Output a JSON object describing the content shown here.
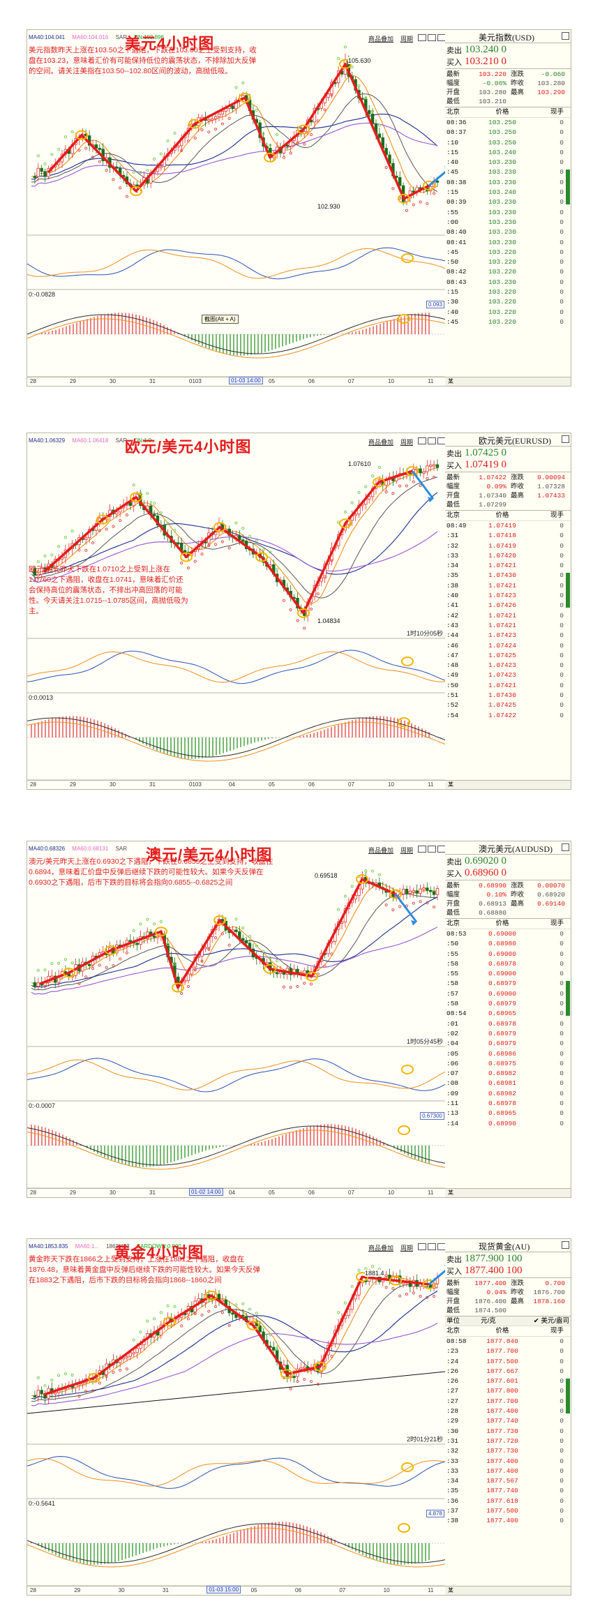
{
  "panels": [
    {
      "title": "美元4小时图",
      "ma": [
        "MA40:104.041",
        "MA60:104.016",
        "SAR",
        "DN:103.896"
      ],
      "note": "美元指数昨天上涨在103.50之下遇阻，下跌在103.00之上受到支持，收盘在103.23，意味着汇价有可能保持低位的震荡状态，不排除加大反弹的空间。请关注美指在103.50--102.80区间的波动，高抛低吸。",
      "labels": {
        "high": "105.630",
        "low": "102.930"
      },
      "osc_caption": "",
      "macd_caption": "0:-0.0828",
      "right_value": "0.093",
      "tooltip": "截图(Alt + A)",
      "x_axis": [
        "28",
        "29",
        "30",
        "31",
        "0103",
        "01-03 14:00",
        "05",
        "06",
        "07",
        "10",
        "11"
      ],
      "toolbar": [
        "商品叠加",
        "周期"
      ],
      "quote": {
        "title": "美元指数(USD)",
        "sell_label": "卖出",
        "sell": "103.240 0",
        "buy_label": "买入",
        "buy": "103.210 0",
        "stats": [
          [
            "最新",
            "103.220",
            "涨跌",
            "-0.060"
          ],
          [
            "幅度",
            "-0.06%",
            "昨收",
            "103.280"
          ],
          [
            "开盘",
            "103.280",
            "最高",
            "103.290"
          ],
          [
            "最低",
            "103.210",
            "",
            ""
          ]
        ],
        "header": [
          "北京",
          "价格",
          "现手"
        ],
        "ticks": [
          [
            "08:36",
            "103.250",
            "0"
          ],
          [
            "08:37",
            "103.250",
            "0"
          ],
          [
            ":10",
            "103.250",
            "0"
          ],
          [
            ":15",
            "103.240",
            "0"
          ],
          [
            ":40",
            "103.230",
            "0"
          ],
          [
            ":45",
            "103.230",
            "0"
          ],
          [
            "08:38",
            "103.230",
            "0"
          ],
          [
            ":15",
            "103.240",
            "0"
          ],
          [
            "08:39",
            "103.230",
            "0"
          ],
          [
            ":55",
            "103.230",
            "0"
          ],
          [
            ":00",
            "103.230",
            "0"
          ],
          [
            "08:40",
            "103.230",
            "0"
          ],
          [
            "08:41",
            "103.230",
            "0"
          ],
          [
            ":45",
            "103.220",
            "0"
          ],
          [
            ":50",
            "103.220",
            "0"
          ],
          [
            "08:42",
            "103.220",
            "0"
          ],
          [
            "08:43",
            "103.230",
            "0"
          ],
          [
            ":15",
            "103.220",
            "0"
          ],
          [
            ":30",
            "103.220",
            "0"
          ],
          [
            ":40",
            "103.220",
            "0"
          ],
          [
            ":45",
            "103.220",
            "0"
          ]
        ],
        "footer": "某"
      }
    },
    {
      "title": "欧元/美元4小时图",
      "ma": [
        "MA40:1.06329",
        "MA60:1.06418",
        "SAR",
        "DN:1.0..."
      ],
      "note": "欧元/美元昨天下跌在1.0710之上受到上涨在1.0760之下遇阻，收盘在1.0741，意味着汇价还会保持高位的震荡状态，不排出冲高回落的可能性。今天请关注1.0715--1.0785区间，高抛低吸为主。",
      "labels": {
        "high": "1.07610",
        "low": "1.04834"
      },
      "osc_caption": "1时10分05秒",
      "macd_caption": "0:0.0013",
      "right_value": "",
      "tooltip": "",
      "x_axis": [
        "28",
        "29",
        "30",
        "31",
        "0103",
        "04",
        "05",
        "06",
        "07",
        "10",
        "11"
      ],
      "toolbar": [
        "商品叠加",
        "周期"
      ],
      "quote": {
        "title": "欧元美元(EURUSD)",
        "sell_label": "卖出",
        "sell": "1.07425 0",
        "buy_label": "买入",
        "buy": "1.07419 0",
        "stats": [
          [
            "最新",
            "1.07422",
            "涨跌",
            "0.00094"
          ],
          [
            "幅度",
            "0.09%",
            "昨收",
            "1.07328"
          ],
          [
            "开盘",
            "1.07340",
            "最高",
            "1.07433"
          ],
          [
            "最低",
            "1.07299",
            "",
            ""
          ]
        ],
        "header": [
          "北京",
          "价格",
          "现手"
        ],
        "ticks": [
          [
            "08:49",
            "1.07419",
            "0"
          ],
          [
            ":31",
            "1.07418",
            "0"
          ],
          [
            ":32",
            "1.07419",
            "0"
          ],
          [
            ":33",
            "1.07420",
            "0"
          ],
          [
            ":34",
            "1.07421",
            "0"
          ],
          [
            ":35",
            "1.07430",
            "0"
          ],
          [
            ":38",
            "1.07421",
            "0"
          ],
          [
            ":40",
            "1.07423",
            "0"
          ],
          [
            ":41",
            "1.07426",
            "0"
          ],
          [
            ":42",
            "1.07421",
            "0"
          ],
          [
            ":43",
            "1.07421",
            "0"
          ],
          [
            ":44",
            "1.07423",
            "0"
          ],
          [
            ":46",
            "1.07424",
            "0"
          ],
          [
            ":47",
            "1.07425",
            "0"
          ],
          [
            ":48",
            "1.07423",
            "0"
          ],
          [
            ":49",
            "1.07423",
            "0"
          ],
          [
            ":50",
            "1.07421",
            "0"
          ],
          [
            ":51",
            "1.07430",
            "0"
          ],
          [
            ":52",
            "1.07425",
            "0"
          ],
          [
            ":54",
            "1.07422",
            "0"
          ]
        ],
        "footer": "某"
      }
    },
    {
      "title": "澳元/美元4小时图",
      "ma": [
        "MA40:0.68326",
        "MA60:0.68131",
        "SAR",
        ""
      ],
      "note": "澳元/美元昨天上涨在0.6930之下遇阻，下跌在0.6855之上受到支持，收盘在0.6894，意味着汇价盘中反弹后继续下跌的可能性较大。如果今天反弹在0.6930之下遇阻，后市下跌的目标将会指向0.6855--0.6825之间",
      "labels": {
        "high": "0.69518",
        "low": ""
      },
      "osc_caption": "1时05分45秒",
      "macd_caption": "0:-0.0007",
      "right_value": "0.67300",
      "tooltip": "",
      "x_axis": [
        "28",
        "29",
        "30",
        "31",
        "01-02 14:00",
        "04",
        "05",
        "06",
        "07",
        "10",
        "11"
      ],
      "toolbar": [
        "商品叠加",
        "周期"
      ],
      "quote": {
        "title": "澳元美元(AUDUSD)",
        "sell_label": "卖出",
        "sell": "0.69020 0",
        "buy_label": "买入",
        "buy": "0.68960 0",
        "stats": [
          [
            "最新",
            "0.68990",
            "涨跌",
            "0.00070"
          ],
          [
            "幅度",
            "0.10%",
            "昨收",
            "0.68920"
          ],
          [
            "开盘",
            "0.68913",
            "最高",
            "0.69140"
          ],
          [
            "最低",
            "0.68880",
            "",
            ""
          ]
        ],
        "header": [
          "北京",
          "价格",
          "现手"
        ],
        "ticks": [
          [
            "08:53",
            "0.69000",
            "0"
          ],
          [
            ":50",
            "0.68980",
            "0"
          ],
          [
            ":55",
            "0.69000",
            "0"
          ],
          [
            ":58",
            "0.68978",
            "0"
          ],
          [
            ":55",
            "0.69000",
            "0"
          ],
          [
            ":58",
            "0.68979",
            "0"
          ],
          [
            ":57",
            "0.69000",
            "0"
          ],
          [
            ":58",
            "0.68979",
            "0"
          ],
          [
            "08:54",
            "0.68965",
            "0"
          ],
          [
            ":01",
            "0.68978",
            "0"
          ],
          [
            ":02",
            "0.68979",
            "0"
          ],
          [
            ":04",
            "0.68979",
            "0"
          ],
          [
            ":05",
            "0.68986",
            "0"
          ],
          [
            ":06",
            "0.68975",
            "0"
          ],
          [
            ":07",
            "0.68982",
            "0"
          ],
          [
            ":08",
            "0.68981",
            "0"
          ],
          [
            ":09",
            "0.68982",
            "0"
          ],
          [
            ":11",
            "0.68978",
            "0"
          ],
          [
            ":13",
            "0.68965",
            "0"
          ],
          [
            ":14",
            "0.68990",
            "0"
          ]
        ],
        "footer": "某"
      }
    },
    {
      "title": "黄金4小时图",
      "ma": [
        "MA40:1853.835",
        "MA60:1...",
        "1863.423",
        "SARDOWN:0.000"
      ],
      "note": "黄金昨天下跌在1866之上受到支持，上涨在1881之下遇阻，收盘在1876.48，意味着黄金盘中反弹后继续下跌的可能性较大。如果今天反弹在1883之下遇阻，后市下跌的目标将会指向1868--1860之间",
      "labels": {
        "high": "1881.4",
        "low": ""
      },
      "osc_caption": "2时01分21秒",
      "macd_caption": "0:-0.5641",
      "right_value": "4.878",
      "tooltip": "",
      "x_axis": [
        "28",
        "29",
        "30",
        "31",
        "01-03 15:00",
        "05",
        "06",
        "07",
        "10",
        "11"
      ],
      "toolbar": [
        "商品叠加",
        "周期"
      ],
      "quote": {
        "title": "现货黄金(AU)",
        "sell_label": "卖出",
        "sell": "1877.900 100",
        "buy_label": "买入",
        "buy": "1877.400 100",
        "stats": [
          [
            "最新",
            "1877.400",
            "涨跌",
            "0.700"
          ],
          [
            "幅度",
            "0.04%",
            "昨收",
            "1876.700"
          ],
          [
            "开盘",
            "1876.400",
            "最高",
            "1878.160"
          ],
          [
            "最低",
            "1874.500",
            "",
            ""
          ]
        ],
        "unit_row": [
          "单位",
          "元/克",
          "✔ 美元/盎司"
        ],
        "header": [
          "北京",
          "价格",
          "现手"
        ],
        "ticks": [
          [
            "08:58",
            "1877.840",
            "0"
          ],
          [
            ":23",
            "1877.700",
            "0"
          ],
          [
            ":24",
            "1877.500",
            "0"
          ],
          [
            ":26",
            "1877.667",
            "0"
          ],
          [
            ":26",
            "1877.601",
            "0"
          ],
          [
            ":27",
            "1877.800",
            "0"
          ],
          [
            ":27",
            "1877.700",
            "0"
          ],
          [
            ":28",
            "1877.400",
            "0"
          ],
          [
            ":29",
            "1877.740",
            "0"
          ],
          [
            ":30",
            "1877.730",
            "0"
          ],
          [
            ":31",
            "1877.720",
            "0"
          ],
          [
            ":32",
            "1877.730",
            "0"
          ],
          [
            ":33",
            "1877.400",
            "0"
          ],
          [
            ":33",
            "1877.400",
            "0"
          ],
          [
            ":34",
            "1877.567",
            "0"
          ],
          [
            ":35",
            "1877.740",
            "0"
          ],
          [
            ":36",
            "1877.618",
            "0"
          ],
          [
            ":37",
            "1877.500",
            "0"
          ],
          [
            ":38",
            "1877.400",
            "0"
          ]
        ],
        "footer": "某"
      }
    }
  ],
  "colors": {
    "red": "#e41c1c",
    "green": "#2a7f2a",
    "blue": "#2b8be0",
    "ma_blue": "#1b2a8f",
    "ma_orange": "#f08c1a",
    "ma_purple": "#9b54d0",
    "sar_red": "#e05050",
    "sar_green": "#7ccf5a",
    "highlight": "#f4b400"
  }
}
